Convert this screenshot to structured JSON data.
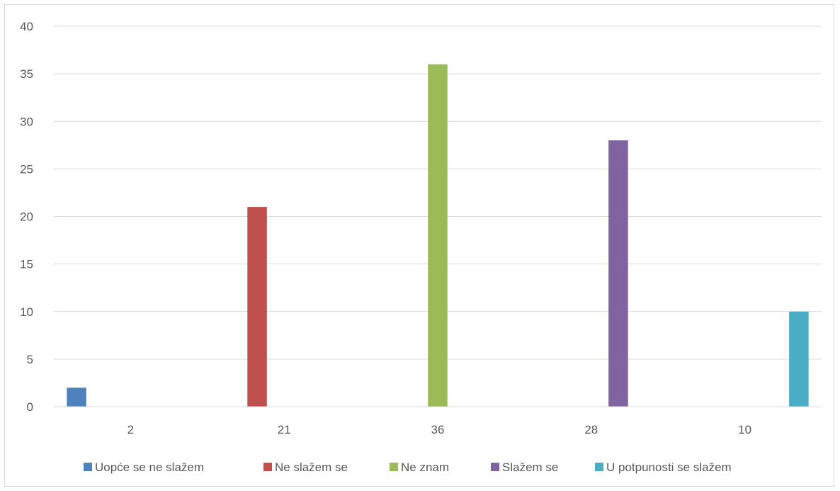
{
  "chart_data": {
    "type": "bar",
    "categories": [
      "2",
      "21",
      "36",
      "28",
      "10"
    ],
    "series": [
      {
        "name": "Uopće se ne slažem",
        "values": [
          2,
          0,
          0,
          0,
          0
        ],
        "color": "#4f81bd"
      },
      {
        "name": "Ne slažem se",
        "values": [
          0,
          21,
          0,
          0,
          0
        ],
        "color": "#c0504d"
      },
      {
        "name": "Ne znam",
        "values": [
          0,
          0,
          36,
          0,
          0
        ],
        "color": "#9bbb59"
      },
      {
        "name": "Slažem se",
        "values": [
          0,
          0,
          0,
          28,
          0
        ],
        "color": "#8064a2"
      },
      {
        "name": "U potpunosti se slažem",
        "values": [
          0,
          0,
          0,
          0,
          10
        ],
        "color": "#4bacc6"
      }
    ],
    "yticks": [
      "0",
      "5",
      "10",
      "15",
      "20",
      "25",
      "30",
      "35",
      "40"
    ],
    "ylim": [
      0,
      40
    ],
    "grid": true,
    "legend_position": "bottom",
    "title": "",
    "xlabel": "",
    "ylabel": ""
  }
}
